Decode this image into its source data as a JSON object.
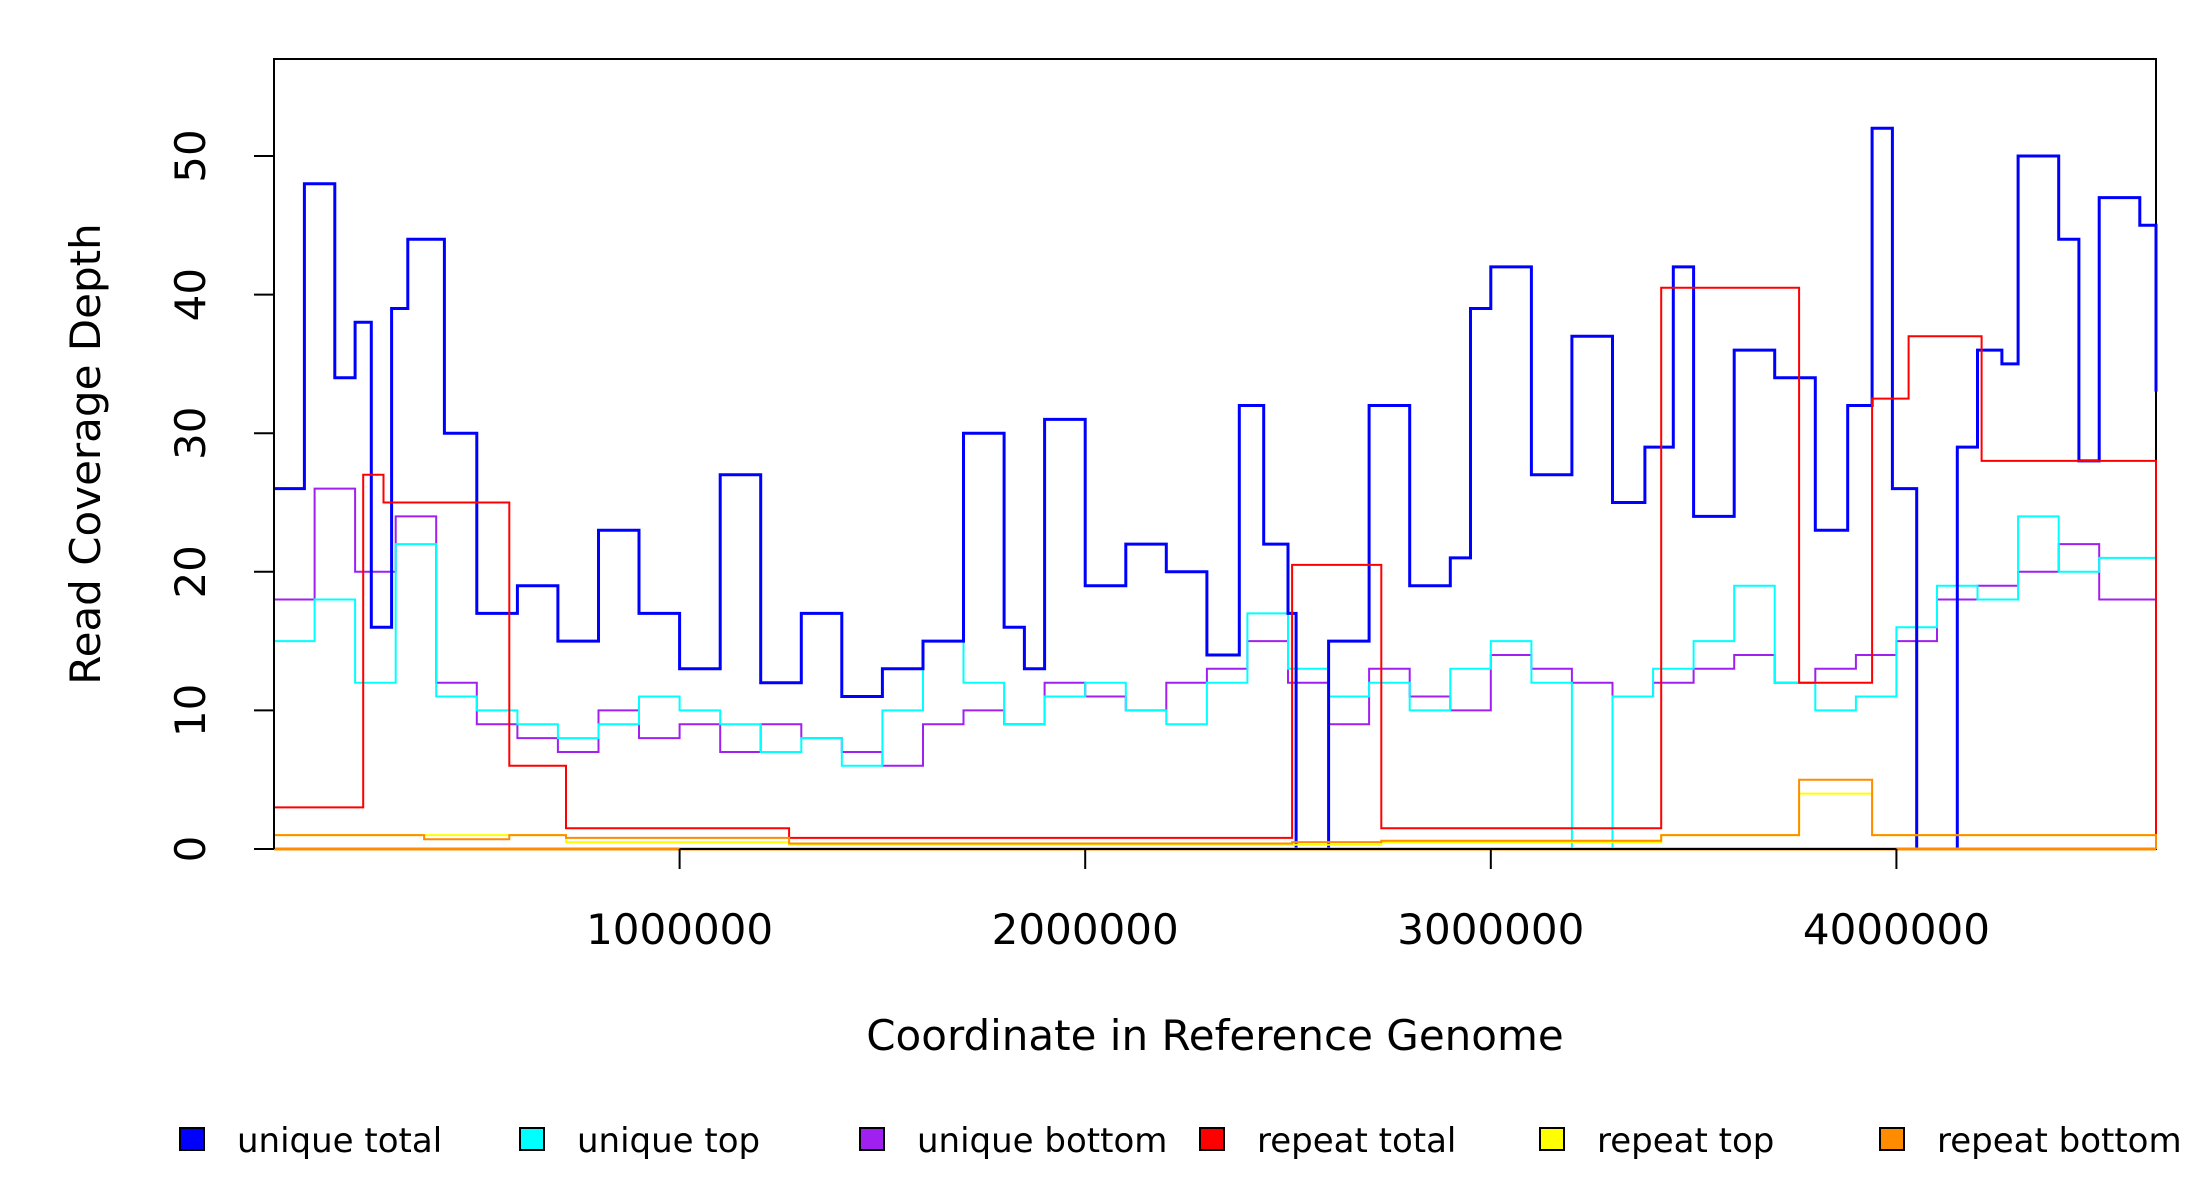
{
  "chart_data": {
    "type": "line",
    "title": "",
    "xlabel": "Coordinate in Reference Genome",
    "ylabel": "Read Coverage Depth",
    "xlim": [
      0,
      4640000
    ],
    "ylim": [
      0,
      57
    ],
    "x_ticks": [
      {
        "value": 1000000,
        "label": "1000000"
      },
      {
        "value": 2000000,
        "label": "2000000"
      },
      {
        "value": 3000000,
        "label": "3000000"
      },
      {
        "value": 4000000,
        "label": "4000000"
      }
    ],
    "y_ticks": [
      {
        "value": 0,
        "label": "0"
      },
      {
        "value": 10,
        "label": "10"
      },
      {
        "value": 20,
        "label": "20"
      },
      {
        "value": 30,
        "label": "30"
      },
      {
        "value": 40,
        "label": "40"
      },
      {
        "value": 50,
        "label": "50"
      }
    ],
    "legend": {
      "position": "bottom"
    },
    "series": [
      {
        "name": "unique total",
        "color": "#0000FF",
        "x": [
          0,
          75000,
          150000,
          200000,
          240000,
          290000,
          330000,
          420000,
          500000,
          600000,
          700000,
          800000,
          900000,
          1000000,
          1100000,
          1200000,
          1300000,
          1400000,
          1500000,
          1600000,
          1700000,
          1800000,
          1850000,
          1900000,
          2000000,
          2100000,
          2200000,
          2300000,
          2380000,
          2440000,
          2500000,
          2520000,
          2600000,
          2700000,
          2800000,
          2900000,
          2950000,
          3000000,
          3100000,
          3200000,
          3300000,
          3380000,
          3450000,
          3500000,
          3600000,
          3700000,
          3800000,
          3880000,
          3940000,
          3990000,
          4050000,
          4150000,
          4200000,
          4260000,
          4300000,
          4400000,
          4450000,
          4500000,
          4600000,
          4640000
        ],
        "y": [
          26,
          48,
          34,
          38,
          16,
          39,
          44,
          30,
          17,
          19,
          15,
          23,
          17,
          13,
          27,
          12,
          17,
          11,
          13,
          15,
          30,
          16,
          13,
          31,
          19,
          22,
          20,
          14,
          32,
          22,
          17,
          0,
          15,
          32,
          19,
          21,
          39,
          42,
          27,
          37,
          25,
          29,
          42,
          24,
          36,
          34,
          23,
          32,
          52,
          26,
          0,
          29,
          36,
          35,
          50,
          44,
          28,
          47,
          45,
          33
        ]
      },
      {
        "name": "unique top",
        "color": "#00FFFF",
        "x": [
          0,
          100000,
          200000,
          300000,
          400000,
          500000,
          600000,
          700000,
          800000,
          900000,
          1000000,
          1100000,
          1200000,
          1300000,
          1400000,
          1500000,
          1600000,
          1700000,
          1800000,
          1900000,
          2000000,
          2100000,
          2200000,
          2300000,
          2400000,
          2500000,
          2600000,
          2700000,
          2800000,
          2900000,
          3000000,
          3100000,
          3200000,
          3300000,
          3400000,
          3500000,
          3600000,
          3700000,
          3800000,
          3900000,
          4000000,
          4100000,
          4200000,
          4300000,
          4400000,
          4500000,
          4640000
        ],
        "y": [
          15,
          18,
          12,
          22,
          11,
          10,
          9,
          8,
          9,
          11,
          10,
          9,
          7,
          8,
          6,
          10,
          15,
          12,
          9,
          11,
          12,
          10,
          9,
          12,
          17,
          13,
          11,
          12,
          10,
          13,
          15,
          12,
          0,
          11,
          13,
          15,
          19,
          12,
          10,
          11,
          16,
          19,
          18,
          24,
          20,
          21,
          15
        ]
      },
      {
        "name": "unique bottom",
        "color": "#A020F0",
        "x": [
          0,
          100000,
          200000,
          300000,
          400000,
          500000,
          600000,
          700000,
          800000,
          900000,
          1000000,
          1100000,
          1200000,
          1300000,
          1400000,
          1500000,
          1600000,
          1700000,
          1800000,
          1900000,
          2000000,
          2100000,
          2200000,
          2300000,
          2400000,
          2500000,
          2600000,
          2700000,
          2800000,
          2900000,
          3000000,
          3100000,
          3200000,
          3300000,
          3400000,
          3500000,
          3600000,
          3700000,
          3800000,
          3900000,
          4000000,
          4100000,
          4200000,
          4300000,
          4400000,
          4500000,
          4640000
        ],
        "y": [
          18,
          26,
          20,
          24,
          12,
          9,
          8,
          7,
          10,
          8,
          9,
          7,
          9,
          8,
          7,
          6,
          9,
          10,
          9,
          12,
          11,
          10,
          12,
          13,
          15,
          12,
          9,
          13,
          11,
          10,
          14,
          13,
          12,
          11,
          12,
          13,
          14,
          12,
          13,
          14,
          15,
          18,
          19,
          20,
          22,
          18,
          16
        ]
      },
      {
        "name": "repeat total",
        "color": "#FF0000",
        "x": [
          0,
          220000,
          270000,
          580000,
          720000,
          1270000,
          2510000,
          2730000,
          3420000,
          3760000,
          3940000,
          4030000,
          4210000,
          4640000
        ],
        "y": [
          3,
          27,
          25,
          6,
          1.5,
          0.8,
          20.5,
          1.5,
          40.5,
          12,
          32.5,
          37,
          28,
          0
        ]
      },
      {
        "name": "repeat top",
        "color": "#FFFF00",
        "x": [
          0,
          580000,
          720000,
          1270000,
          2510000,
          2730000,
          3420000,
          3760000,
          3940000,
          4640000
        ],
        "y": [
          1,
          1,
          0.5,
          0.3,
          0.3,
          0.5,
          1,
          4,
          1,
          0
        ]
      },
      {
        "name": "repeat bottom",
        "color": "#FF8C00",
        "x": [
          0,
          370000,
          580000,
          720000,
          1270000,
          2510000,
          2730000,
          3420000,
          3760000,
          3940000,
          4640000
        ],
        "y": [
          1,
          0.7,
          1,
          0.8,
          0.4,
          0.5,
          0.6,
          1,
          5,
          1,
          0
        ]
      }
    ]
  }
}
